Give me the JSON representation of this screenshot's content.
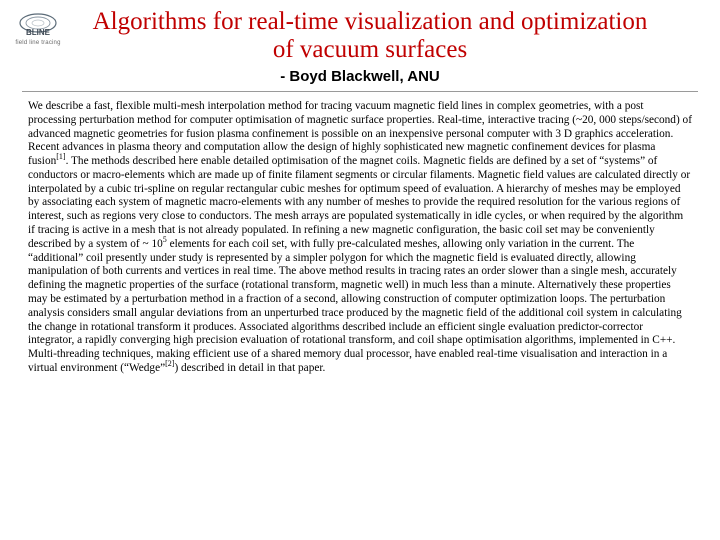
{
  "logo": {
    "label": "BLINE",
    "caption": "field line tracing",
    "stroke": "#5b6b78",
    "text_color": "#3f4a55"
  },
  "title": {
    "text": "Algorithms for real-time visualization and optimization of vacuum surfaces",
    "color": "#c00000",
    "fontsize": 25
  },
  "author": {
    "text": "- Boyd Blackwell, ANU",
    "fontsize": 15
  },
  "divider_color": "#9a9a9a",
  "abstract": {
    "fontsize": 11.3,
    "lineheight": 1.22,
    "html": "We describe a fast, flexible multi-mesh interpolation method for tracing vacuum magnetic field lines in complex geometries, with a post processing perturbation method for computer optimisation of magnetic surface properties. Real-time, interactive tracing (~20, 000 steps/second) of advanced magnetic geometries for fusion plasma confinement is possible on an inexpensive personal computer with 3 D graphics acceleration. Recent advances in plasma theory and computation allow the design of highly sophisticated new magnetic confinement devices for plasma fusion<sup>[1]</sup>. The methods described here enable detailed optimisation of the magnet coils. Magnetic fields are defined by a set of “systems” of conductors or macro-elements which are made up of finite filament segments or circular filaments. Magnetic field values are calculated directly or interpolated by a cubic tri-spline on regular rectangular cubic meshes for optimum speed of evaluation. A hierarchy of meshes may be employed by associating each system of magnetic macro-elements with any number of meshes to provide the required resolution for the various regions of interest, such as regions very close to conductors. The mesh arrays are populated systematically in idle cycles, or when required by the algorithm if tracing is active in a mesh that is not already populated. In refining a new magnetic configuration, the basic coil set may be conveniently described by a system of ~ 10<sup>5</sup> elements for each coil set, with fully pre-calculated meshes, allowing only variation in the current. The “additional” coil presently under study is represented by a simpler polygon for which the magnetic field is evaluated directly, allowing manipulation of both currents and vertices in real time. The above method results in tracing rates an order slower than a single mesh, accurately defining the magnetic properties of the surface (rotational transform, magnetic well) in much less than a minute. Alternatively these properties may be estimated by a perturbation method in a fraction of a second, allowing construction of computer optimization loops. The perturbation analysis considers small angular deviations from an unperturbed trace produced by the magnetic field of the additional coil system in calculating the change in rotational transform it produces. Associated algorithms described include an efficient single evaluation predictor-corrector integrator, a rapidly converging high precision evaluation of rotational transform, and coil shape optimisation algorithms, implemented in C++. Multi-threading techniques, making efficient use of a shared memory dual processor, have enabled real-time visualisation and interaction in a virtual environment (“Wedge”<sup>[2]</sup>) described in detail in that paper."
  }
}
